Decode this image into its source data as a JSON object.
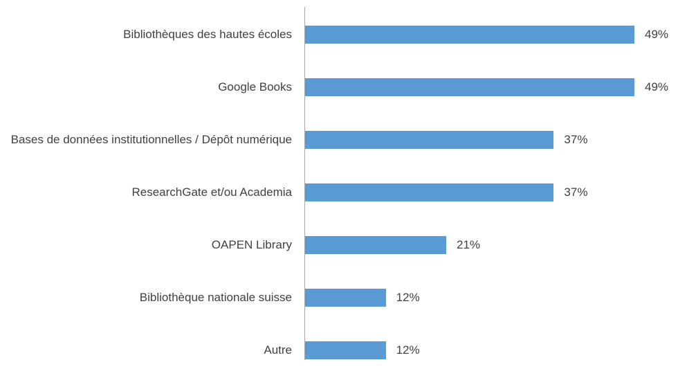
{
  "chart_data": {
    "type": "bar",
    "orientation": "horizontal",
    "categories": [
      "Bibliothèques des hautes écoles",
      "Google Books",
      "Bases de données institutionnelles / Dépôt numérique",
      "ResearchGate et/ou Academia",
      "OAPEN Library",
      "Bibliothèque nationale suisse",
      "Autre"
    ],
    "values": [
      49,
      49,
      37,
      37,
      21,
      12,
      12
    ],
    "value_labels": [
      "49%",
      "49%",
      "37%",
      "37%",
      "21%",
      "12%",
      "12%"
    ],
    "color": "#5b9bd5"
  }
}
